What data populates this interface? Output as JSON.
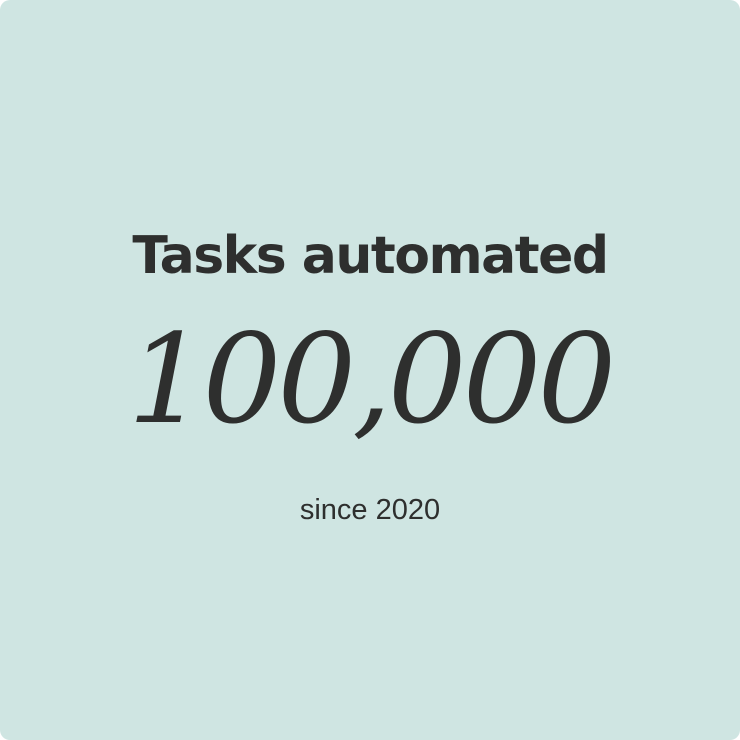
{
  "card": {
    "background_color": "#cfe5e2",
    "text_color": "#2e2f2e"
  },
  "stat": {
    "label": "Tasks automated",
    "value": "100,000",
    "caption": "since 2020"
  }
}
